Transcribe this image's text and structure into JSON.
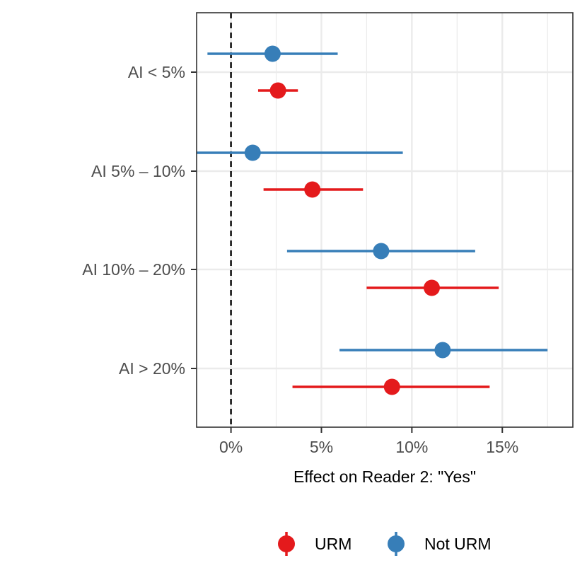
{
  "chart_data": {
    "type": "scatter",
    "subtype": "forest-plot-point-range",
    "title": "",
    "xlabel": "Effect on Reader 2: \"Yes\"",
    "ylabel": "",
    "xlim": [
      -1.9,
      18.9
    ],
    "x_ticks": [
      0,
      5,
      10,
      15
    ],
    "x_tick_labels": [
      "0%",
      "5%",
      "10%",
      "15%"
    ],
    "x_unit": "percent",
    "reference_line": {
      "x": 0,
      "style": "dashed",
      "color": "#000000"
    },
    "categories": [
      "AI < 5%",
      "AI 5% – 10%",
      "AI 10% – 20%",
      "AI > 20%"
    ],
    "grid": true,
    "legend_position": "bottom",
    "series": [
      {
        "name": "URM",
        "color": "#e41a1c",
        "estimate": [
          2.6,
          4.5,
          11.1,
          8.9
        ],
        "lower": [
          1.5,
          1.8,
          7.5,
          3.4
        ],
        "upper": [
          3.7,
          7.3,
          14.8,
          14.3
        ]
      },
      {
        "name": "Not URM",
        "color": "#377eb8",
        "estimate": [
          2.3,
          1.2,
          8.3,
          11.7
        ],
        "lower": [
          -1.3,
          -1.9,
          3.1,
          6.0
        ],
        "upper": [
          5.9,
          9.5,
          13.5,
          17.5
        ]
      }
    ]
  }
}
